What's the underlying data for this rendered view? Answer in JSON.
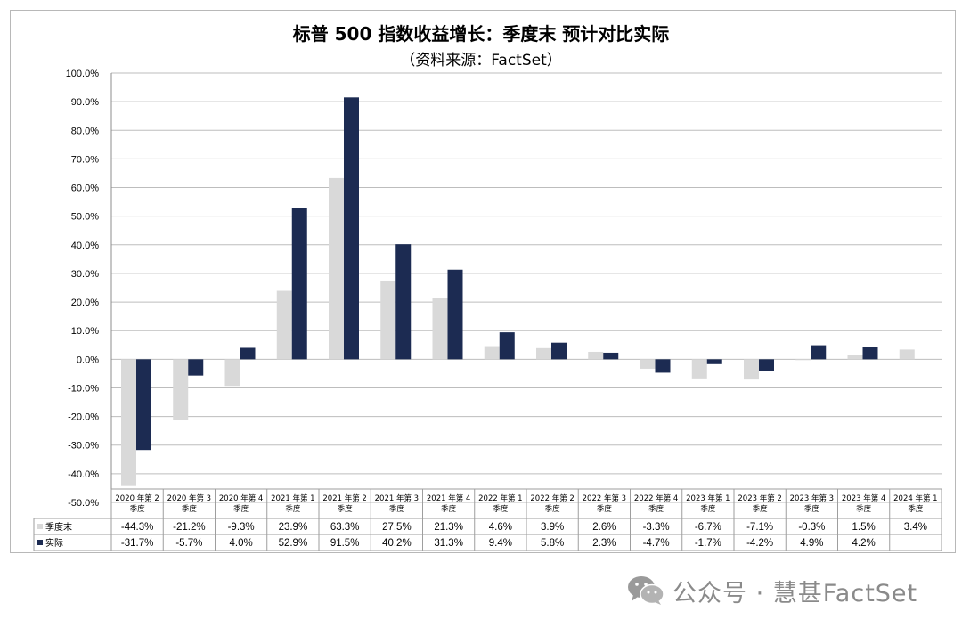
{
  "chart_data": {
    "type": "bar",
    "title": "标普 500 指数收益增长：季度末 预计对比实际",
    "subtitle": "（资料来源：FactSet）",
    "categories": [
      [
        "2020 年第 2",
        "季度"
      ],
      [
        "2020 年第 3",
        "季度"
      ],
      [
        "2020 年第 4",
        "季度"
      ],
      [
        "2021 年第 1",
        "季度"
      ],
      [
        "2021 年第 2",
        "季度"
      ],
      [
        "2021 年第 3",
        "季度"
      ],
      [
        "2021 年第 4",
        "季度"
      ],
      [
        "2022 年第 1",
        "季度"
      ],
      [
        "2022 年第 2",
        "季度"
      ],
      [
        "2022 年第 3",
        "季度"
      ],
      [
        "2022 年第 4",
        "季度"
      ],
      [
        "2023 年第 1",
        "季度"
      ],
      [
        "2023 年第 2",
        "季度"
      ],
      [
        "2023 年第 3",
        "季度"
      ],
      [
        "2023 年第 4",
        "季度"
      ],
      [
        "2024 年第 1",
        "季度"
      ]
    ],
    "series": [
      {
        "name": "季度末",
        "color": "#d9d9d9",
        "values": [
          -44.3,
          -21.2,
          -9.3,
          23.9,
          63.3,
          27.5,
          21.3,
          4.6,
          3.9,
          2.6,
          -3.3,
          -6.7,
          -7.1,
          -0.3,
          1.5,
          3.4
        ],
        "labels": [
          "-44.3%",
          "-21.2%",
          "-9.3%",
          "23.9%",
          "63.3%",
          "27.5%",
          "21.3%",
          "4.6%",
          "3.9%",
          "2.6%",
          "-3.3%",
          "-6.7%",
          "-7.1%",
          "-0.3%",
          "1.5%",
          "3.4%"
        ]
      },
      {
        "name": "实际",
        "color": "#1c2b52",
        "values": [
          -31.7,
          -5.7,
          4.0,
          52.9,
          91.5,
          40.2,
          31.3,
          9.4,
          5.8,
          2.3,
          -4.7,
          -1.7,
          -4.2,
          4.9,
          4.2,
          null
        ],
        "labels": [
          "-31.7%",
          "-5.7%",
          "4.0%",
          "52.9%",
          "91.5%",
          "40.2%",
          "31.3%",
          "9.4%",
          "5.8%",
          "2.3%",
          "-4.7%",
          "-1.7%",
          "-4.2%",
          "4.9%",
          "4.2%",
          ""
        ]
      }
    ],
    "ylim": [
      -50,
      100
    ],
    "yticks": [
      "-50.0%",
      "-40.0%",
      "-30.0%",
      "-20.0%",
      "-10.0%",
      "0.0%",
      "10.0%",
      "20.0%",
      "30.0%",
      "40.0%",
      "50.0%",
      "60.0%",
      "70.0%",
      "80.0%",
      "90.0%",
      "100.0%"
    ],
    "grid": true,
    "legend": "data-table-left"
  },
  "watermark": {
    "text": "公众号 · 慧甚FactSet",
    "icon": "wechat-icon"
  }
}
